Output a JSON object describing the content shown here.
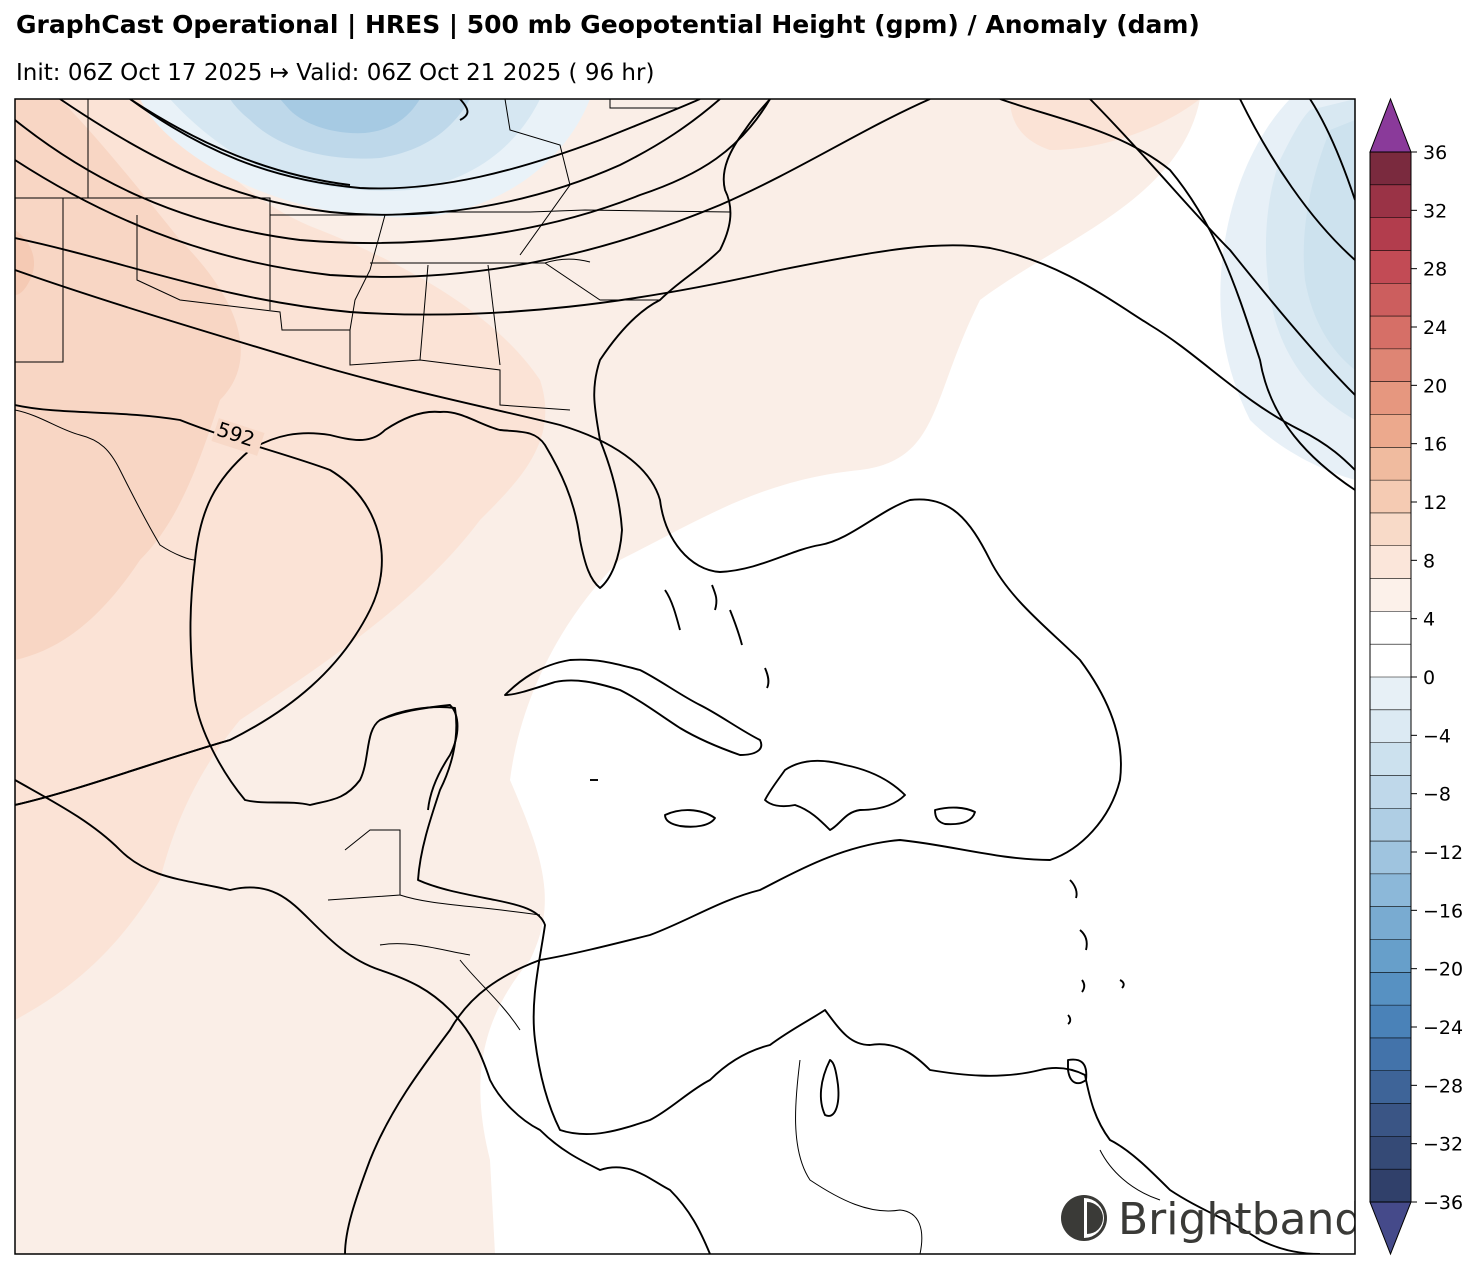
{
  "header": {
    "title": "GraphCast Operational | HRES | 500 mb Geopotential Height (gpm) / Anomaly (dam)",
    "subtitle": "Init: 06Z Oct 17 2025 ↦ Valid: 06Z Oct 21 2025 ( 96 hr)"
  },
  "map": {
    "contour_label": "592",
    "logo_text": "Brightband"
  },
  "colorbar": {
    "ticks": [
      "36",
      "32",
      "28",
      "24",
      "20",
      "16",
      "12",
      "8",
      "4",
      "0",
      "−4",
      "−8",
      "−12",
      "−16",
      "−20",
      "−24",
      "−28",
      "−32",
      "−36"
    ],
    "colors": [
      "#7a2a3e",
      "#9a3346",
      "#b23d4d",
      "#c24b55",
      "#cc5e5e",
      "#d66f67",
      "#de8574",
      "#e6977f",
      "#eca98d",
      "#f0bb9f",
      "#f5cbb3",
      "#f8dac8",
      "#fbe6da",
      "#fcf1ea",
      "#ffffff",
      "#ffffff",
      "#e7f0f6",
      "#dceaf3",
      "#cce1ee",
      "#bfd8ea",
      "#afcee4",
      "#9fc4df",
      "#8cb8d9",
      "#79abd1",
      "#679fca",
      "#5791c2",
      "#4a82b8",
      "#4373aa",
      "#3e6498",
      "#3a5585",
      "#354a76",
      "#30406a"
    ],
    "over_color": "#8a3a9a",
    "under_color": "#454a8a"
  }
}
